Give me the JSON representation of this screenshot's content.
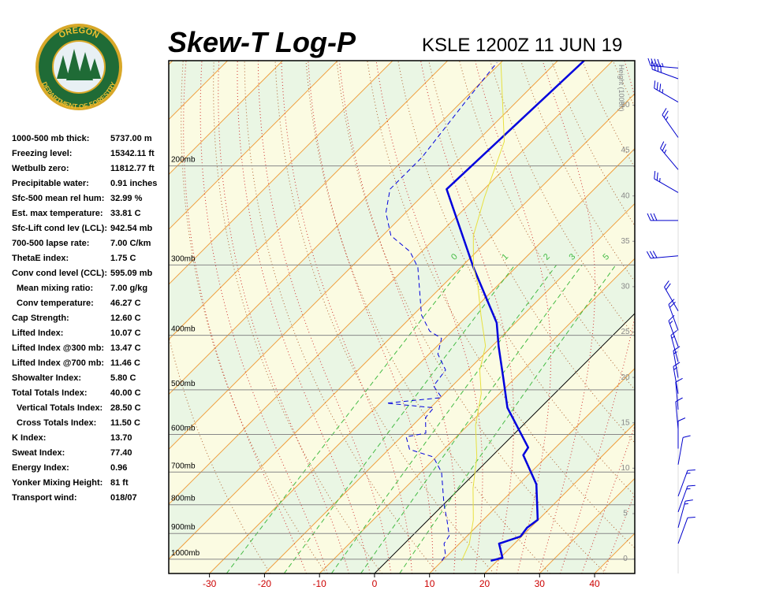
{
  "logo": {
    "top": "OREGON",
    "bottom": "DEPARTMENT OF FORESTRY"
  },
  "indices": [
    {
      "label": "1000-500 mb thick:",
      "value": "5737.00 m"
    },
    {
      "label": "Freezing level:",
      "value": "15342.11 ft"
    },
    {
      "label": "Wetbulb zero:",
      "value": "11812.77 ft"
    },
    {
      "label": "Precipitable water:",
      "value": "0.91 inches"
    },
    {
      "label": "Sfc-500 mean rel hum:",
      "value": "32.99 %"
    },
    {
      "label": "Est. max temperature:",
      "value": "33.81 C"
    },
    {
      "label": "Sfc-Lift cond lev (LCL):",
      "value": "942.54 mb"
    },
    {
      "label": "700-500 lapse rate:",
      "value": "7.00 C/km"
    },
    {
      "label": "ThetaE index:",
      "value": "1.75 C"
    },
    {
      "label": "Conv cond level (CCL):",
      "value": "595.09 mb"
    },
    {
      "label": "Mean mixing ratio:",
      "value": "7.00 g/kg",
      "indent": true
    },
    {
      "label": "Conv temperature:",
      "value": "46.27 C",
      "indent": true
    },
    {
      "label": "Cap Strength:",
      "value": "12.60 C"
    },
    {
      "label": "Lifted Index:",
      "value": "10.07 C"
    },
    {
      "label": "Lifted Index @300 mb:",
      "value": "13.47 C"
    },
    {
      "label": "Lifted Index @700 mb:",
      "value": "11.46 C"
    },
    {
      "label": "Showalter Index:",
      "value": "5.80 C"
    },
    {
      "label": "Total Totals Index:",
      "value": "40.00 C"
    },
    {
      "label": "Vertical Totals Index:",
      "value": "28.50 C",
      "indent": true
    },
    {
      "label": "Cross Totals Index:",
      "value": "11.50 C",
      "indent": true
    },
    {
      "label": "K Index:",
      "value": "13.70"
    },
    {
      "label": "Sweat Index:",
      "value": "77.40"
    },
    {
      "label": "Energy Index:",
      "value": "0.96"
    },
    {
      "label": "Yonker Mixing Height:",
      "value": "81 ft"
    },
    {
      "label": "Transport wind:",
      "value": "018/07"
    }
  ],
  "chart_data": {
    "type": "skew-t",
    "title": "Skew-T Log-P",
    "subtitle": "KSLE 1200Z 11 JUN 19",
    "xlim": [
      -37.4,
      47.3
    ],
    "xticks": [
      -30,
      -20,
      -10,
      0,
      10,
      20,
      30,
      40
    ],
    "skew_deg": 45,
    "log_y": true,
    "ylim": [
      1060,
      130
    ],
    "yticks": [
      {
        "value": 1000,
        "label": "1000mb"
      },
      {
        "value": 900,
        "label": "900mb"
      },
      {
        "value": 800,
        "label": "800mb"
      },
      {
        "value": 700,
        "label": "700mb"
      },
      {
        "value": 600,
        "label": "600mb"
      },
      {
        "value": 500,
        "label": "500mb"
      },
      {
        "value": 400,
        "label": "400mb"
      },
      {
        "value": 300,
        "label": "300mb"
      },
      {
        "value": 200,
        "label": "200mb"
      }
    ],
    "y2label": "Height (1000ft)",
    "y2lim": [
      -1.6,
      54.9
    ],
    "y2ticks": [
      0,
      5,
      10,
      15,
      20,
      25,
      30,
      35,
      40,
      45,
      50
    ],
    "mixing_ratios": [
      {
        "value": 0.4,
        "label": "0"
      },
      1,
      2,
      3,
      5
    ],
    "highlight_isotherm": 0,
    "band_colors": [
      "#eaf6e4",
      "#fbfbe2"
    ],
    "isotherm_color": "#f0a040",
    "series": [
      {
        "color": "#0000dd",
        "width": 2.5,
        "dashed": false,
        "x": [
          18.8,
          20.4,
          17.2,
          19.8,
          19.4,
          19.9,
          13.2,
          5.5,
          5.0,
          -6.0,
          -12.2,
          -18.7,
          -23.4,
          -37.7,
          -56.8,
          -55.2
        ],
        "y": [
          1006,
          994,
          938,
          911,
          879,
          851,
          736,
          653,
          633,
          538,
          476,
          419,
          380,
          303,
          220,
          130
        ]
      },
      {
        "color": "#0000dd",
        "width": 1,
        "dashed": true,
        "x": [
          9.9,
          9.6,
          7.2,
          6.7,
          3.4,
          0,
          -6.2,
          -10.5,
          -16.2,
          -19.1,
          -16.2,
          -19.1,
          -19.4,
          -28.8,
          -19.8,
          -23.4,
          -24.1,
          -28.4,
          -30.6,
          -34.1,
          -38.5,
          -47.8,
          -52.1,
          -58.5,
          -63.6,
          -67.1,
          -67.1,
          -69.3,
          -70.7
        ],
        "y": [
          1006,
          984,
          938,
          908,
          851,
          798,
          701,
          658,
          638,
          606,
          597,
          560,
          538,
          528,
          516,
          492,
          461,
          432,
          405,
          393,
          368,
          303,
          284,
          266,
          242,
          220,
          193,
          154,
          131
        ]
      },
      {
        "color": "#e8e040",
        "width": 1,
        "dashed": false,
        "x": [
          13.5,
          11.8,
          8.2,
          2.4,
          -2.6,
          -8.6,
          -13.3,
          -17.9,
          -21.2,
          -27.7,
          -34.1,
          -37.7,
          -43.5,
          -48.5,
          -55.0,
          -70.0
        ],
        "y": [
          1006,
          938,
          851,
          748,
          658,
          578,
          508,
          461,
          418,
          368,
          323,
          303,
          266,
          227,
          181,
          131
        ]
      }
    ],
    "winds": {
      "pressure": [
        134,
        140,
        154,
        178,
        203,
        223,
        250,
        289,
        362,
        392,
        419,
        446,
        476,
        508,
        542,
        587,
        636,
        679,
        773,
        824,
        879,
        938
      ],
      "direction": [
        275,
        290,
        300,
        325,
        320,
        300,
        270,
        265,
        330,
        340,
        340,
        345,
        350,
        350,
        355,
        355,
        360,
        10,
        20,
        20,
        15,
        20
      ],
      "speed": [
        45,
        40,
        35,
        25,
        25,
        25,
        30,
        30,
        20,
        20,
        15,
        15,
        15,
        15,
        10,
        10,
        10,
        10,
        15,
        15,
        15,
        10
      ],
      "color": "#0000cc"
    }
  }
}
